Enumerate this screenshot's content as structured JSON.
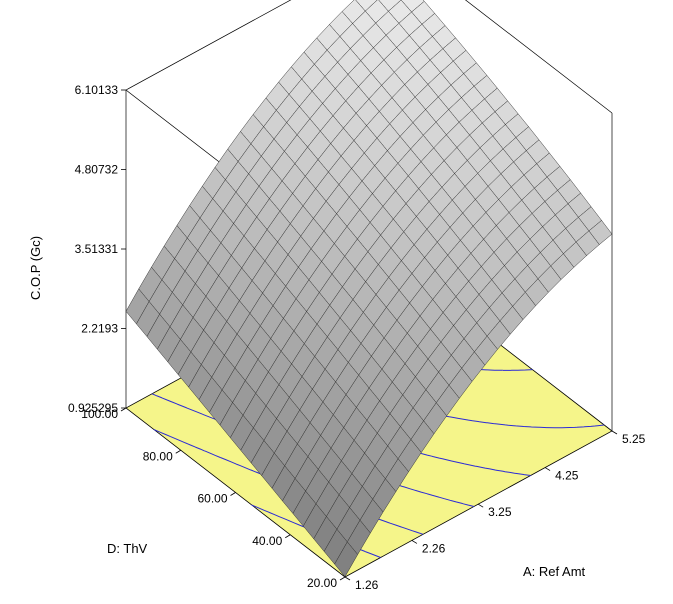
{
  "chart_data": {
    "type": "surface",
    "title": "",
    "zlabel": "C.O.P (Gc)",
    "xlabel": "A: Ref Amt",
    "ylabel": "D: ThV",
    "x_ticks": [
      "1.26",
      "2.26",
      "3.25",
      "4.25",
      "5.25"
    ],
    "x_tick_values": [
      1.26,
      2.26,
      3.25,
      4.25,
      5.25
    ],
    "y_ticks": [
      "20.00",
      "40.00",
      "60.00",
      "80.00",
      "100.00"
    ],
    "y_tick_values": [
      20,
      40,
      60,
      80,
      100
    ],
    "z_ticks": [
      "0.925295",
      "2.2193",
      "3.51331",
      "4.80732",
      "6.10133"
    ],
    "z_tick_values": [
      0.925295,
      2.2193,
      3.51331,
      4.80732,
      6.10133
    ],
    "xlim": [
      1.26,
      5.25
    ],
    "ylim": [
      20,
      100
    ],
    "zlim": [
      0.925295,
      6.10133
    ],
    "grid_resolution": 21,
    "corner_values": [
      {
        "x": 1.26,
        "y": 20,
        "z": 0.93
      },
      {
        "x": 5.25,
        "y": 20,
        "z": 4.3
      },
      {
        "x": 1.26,
        "y": 100,
        "z": 2.5
      },
      {
        "x": 5.25,
        "y": 100,
        "z": 6.1
      }
    ],
    "floor_color": "#f5f58a",
    "contour_color": "#2b2bd6",
    "surface_color": "#c8c8c8"
  }
}
